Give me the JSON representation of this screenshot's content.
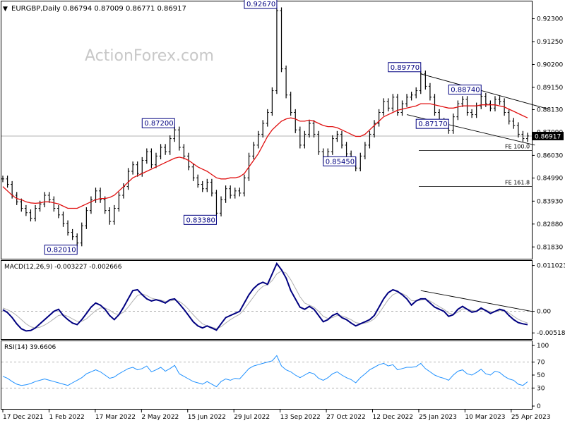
{
  "header": {
    "symbol_line": "EURGBP,Daily  0.86794 0.87009 0.86771 0.86917",
    "watermark": "ActionForex.com"
  },
  "chart_data": [
    {
      "type": "line",
      "name": "price",
      "title": "EURGBP,Daily  0.86794 0.87009 0.86771 0.86917",
      "ylim": [
        0.8145,
        0.929
      ],
      "yticks": [
        "0.92300",
        "0.91250",
        "0.90200",
        "0.89150",
        "0.88130",
        "0.87090",
        "0.86030",
        "0.84990",
        "0.83930",
        "0.82880",
        "0.81830"
      ],
      "last_price_label": "0.86917",
      "last_price": 0.86917,
      "x_labels": [
        "17 Dec 2021",
        "1 Feb 2022",
        "17 Mar 2022",
        "2 May 2022",
        "15 Jun 2022",
        "29 Jul 2022",
        "13 Sep 2022",
        "27 Oct 2022",
        "12 Dec 2022",
        "25 Jan 2023",
        "10 Mar 2023",
        "25 Apr 2023"
      ],
      "series": [
        {
          "key": "close",
          "values": [
            0.8495,
            0.847,
            0.842,
            0.839,
            0.836,
            0.834,
            0.8315,
            0.836,
            0.838,
            0.842,
            0.84,
            0.836,
            0.833,
            0.829,
            0.825,
            0.823,
            0.8201,
            0.828,
            0.835,
            0.84,
            0.844,
            0.84,
            0.835,
            0.83,
            0.836,
            0.842,
            0.846,
            0.853,
            0.856,
            0.852,
            0.858,
            0.862,
            0.856,
            0.86,
            0.864,
            0.862,
            0.868,
            0.872,
            0.864,
            0.86,
            0.855,
            0.85,
            0.847,
            0.845,
            0.848,
            0.843,
            0.8338,
            0.84,
            0.845,
            0.842,
            0.844,
            0.843,
            0.85,
            0.86,
            0.865,
            0.87,
            0.875,
            0.88,
            0.89,
            0.9267,
            0.9,
            0.888,
            0.88,
            0.872,
            0.865,
            0.87,
            0.875,
            0.87,
            0.862,
            0.858,
            0.862,
            0.868,
            0.87,
            0.865,
            0.861,
            0.858,
            0.8545,
            0.86,
            0.865,
            0.87,
            0.875,
            0.88,
            0.885,
            0.882,
            0.887,
            0.88,
            0.884,
            0.887,
            0.888,
            0.89,
            0.8977,
            0.892,
            0.887,
            0.88,
            0.876,
            0.874,
            0.8717,
            0.878,
            0.884,
            0.886,
            0.88,
            0.879,
            0.883,
            0.8874,
            0.884,
            0.882,
            0.886,
            0.885,
            0.88,
            0.876,
            0.874,
            0.87,
            0.868,
            0.8692
          ]
        },
        {
          "key": "moving_average",
          "values": [
            0.846,
            0.844,
            0.842,
            0.8405,
            0.84,
            0.839,
            0.8385,
            0.8383,
            0.8385,
            0.839,
            0.839,
            0.8385,
            0.838,
            0.837,
            0.836,
            0.836,
            0.836,
            0.837,
            0.838,
            0.839,
            0.84,
            0.8405,
            0.8405,
            0.841,
            0.842,
            0.844,
            0.846,
            0.848,
            0.85,
            0.851,
            0.852,
            0.853,
            0.854,
            0.855,
            0.856,
            0.857,
            0.858,
            0.859,
            0.8595,
            0.859,
            0.858,
            0.8565,
            0.855,
            0.854,
            0.853,
            0.8515,
            0.85,
            0.8495,
            0.8495,
            0.85,
            0.85,
            0.8505,
            0.852,
            0.855,
            0.858,
            0.861,
            0.865,
            0.869,
            0.872,
            0.874,
            0.876,
            0.877,
            0.8775,
            0.877,
            0.876,
            0.876,
            0.8765,
            0.876,
            0.875,
            0.874,
            0.8735,
            0.8735,
            0.873,
            0.872,
            0.871,
            0.87,
            0.869,
            0.869,
            0.87,
            0.872,
            0.874,
            0.876,
            0.878,
            0.879,
            0.88,
            0.881,
            0.8815,
            0.882,
            0.8825,
            0.883,
            0.884,
            0.884,
            0.884,
            0.8835,
            0.883,
            0.8825,
            0.882,
            0.882,
            0.8825,
            0.883,
            0.883,
            0.883,
            0.883,
            0.8835,
            0.8835,
            0.8835,
            0.8835,
            0.883,
            0.8825,
            0.8815,
            0.8805,
            0.8795,
            0.8785,
            0.8775
          ]
        }
      ],
      "annotations": [
        {
          "text": "0.92670",
          "x_index": 59,
          "y": 0.9267,
          "side": "left"
        },
        {
          "text": "0.87200",
          "x_index": 37,
          "y": 0.872,
          "side": "left"
        },
        {
          "text": "0.83380",
          "x_index": 46,
          "y": 0.8338,
          "side": "left"
        },
        {
          "text": "0.82010",
          "x_index": 16,
          "y": 0.8201,
          "side": "left"
        },
        {
          "text": "0.85450",
          "x_index": 76,
          "y": 0.8545,
          "side": "left"
        },
        {
          "text": "0.89770",
          "x_index": 90,
          "y": 0.8977,
          "side": "left"
        },
        {
          "text": "0.88740",
          "x_index": 103,
          "y": 0.8874,
          "side": "left"
        },
        {
          "text": "0.87170",
          "x_index": 96,
          "y": 0.8717,
          "side": "left"
        }
      ],
      "channel": {
        "upper": {
          "from_index": 90,
          "from_y": 0.8977,
          "to_index": 113,
          "to_y": 0.8815
        },
        "lower": {
          "from_index": 87,
          "from_y": 0.879,
          "to_index": 110,
          "to_y": 0.865
        }
      },
      "fib_levels": [
        {
          "label": "FE 100.0",
          "y": 0.8625
        },
        {
          "label": "FE 161.8",
          "y": 0.846
        }
      ]
    },
    {
      "type": "line",
      "name": "macd",
      "title": "MACD(12,26,9) -0.003227 -0.002666",
      "ylim": [
        -0.0065,
        0.0118
      ],
      "yticks": [
        "0.011023",
        "0.00",
        "-0.005182"
      ],
      "zero_ticks": [
        "0.00"
      ],
      "series": [
        {
          "key": "macd_line",
          "values": [
            0.0004,
            -0.0003,
            -0.0015,
            -0.003,
            -0.0042,
            -0.0047,
            -0.0046,
            -0.004,
            -0.003,
            -0.002,
            -0.001,
            0.0,
            0.0005,
            -0.001,
            -0.002,
            -0.0028,
            -0.0032,
            -0.002,
            -0.0005,
            0.001,
            0.002,
            0.0015,
            0.0005,
            -0.001,
            -0.002,
            -0.0008,
            0.001,
            0.003,
            0.005,
            0.0052,
            0.004,
            0.003,
            0.0025,
            0.0028,
            0.0025,
            0.002,
            0.0028,
            0.003,
            0.0018,
            0.0005,
            -0.001,
            -0.0025,
            -0.0035,
            -0.004,
            -0.0035,
            -0.004,
            -0.0045,
            -0.003,
            -0.0015,
            -0.001,
            -0.0005,
            0.0,
            0.002,
            0.004,
            0.0055,
            0.0065,
            0.007,
            0.0065,
            0.009,
            0.0115,
            0.01,
            0.008,
            0.005,
            0.003,
            0.001,
            0.0005,
            0.0012,
            0.0005,
            -0.001,
            -0.0025,
            -0.002,
            -0.001,
            -0.0005,
            -0.0015,
            -0.002,
            -0.0028,
            -0.0035,
            -0.003,
            -0.0025,
            -0.002,
            -0.001,
            0.001,
            0.003,
            0.0045,
            0.0052,
            0.0048,
            0.004,
            0.003,
            0.0015,
            0.0025,
            0.003,
            0.003,
            0.002,
            0.001,
            0.0005,
            0.0,
            -0.0012,
            -0.0008,
            0.0005,
            0.0012,
            0.0005,
            -0.0002,
            0.0,
            0.0008,
            0.0002,
            -0.0005,
            0.0,
            0.0005,
            0.0002,
            -0.001,
            -0.002,
            -0.0027,
            -0.003,
            -0.0032
          ]
        },
        {
          "key": "signal_line",
          "values": [
            0.0008,
            0.0004,
            -0.0002,
            -0.001,
            -0.002,
            -0.003,
            -0.0037,
            -0.004,
            -0.0038,
            -0.0033,
            -0.0026,
            -0.0018,
            -0.001,
            -0.0008,
            -0.0012,
            -0.0018,
            -0.0024,
            -0.0024,
            -0.0018,
            -0.0008,
            0.0002,
            0.0008,
            0.0008,
            0.0003,
            -0.0005,
            -0.0008,
            -0.0002,
            0.001,
            0.0025,
            0.0038,
            0.0042,
            0.0038,
            0.0032,
            0.0029,
            0.0027,
            0.0024,
            0.0025,
            0.0027,
            0.0024,
            0.0016,
            0.0005,
            -0.0008,
            -0.002,
            -0.003,
            -0.0035,
            -0.0038,
            -0.0041,
            -0.0037,
            -0.0028,
            -0.002,
            -0.0013,
            -0.0007,
            0.0005,
            0.002,
            0.0035,
            0.005,
            0.006,
            0.0064,
            0.0074,
            0.009,
            0.0097,
            0.0092,
            0.0076,
            0.0056,
            0.0035,
            0.002,
            0.0015,
            0.001,
            0.0,
            -0.0012,
            -0.0017,
            -0.0015,
            -0.001,
            -0.0011,
            -0.0015,
            -0.002,
            -0.0027,
            -0.0029,
            -0.0028,
            -0.0025,
            -0.0018,
            -0.0005,
            0.0012,
            0.0028,
            0.004,
            0.0045,
            0.0043,
            0.0037,
            0.0026,
            0.0025,
            0.0027,
            0.0029,
            0.0025,
            0.0018,
            0.0011,
            0.0005,
            -0.0004,
            -0.0007,
            -0.0002,
            0.0006,
            0.0006,
            0.0002,
            0.0001,
            0.0004,
            0.0003,
            -0.0001,
            -0.0001,
            0.0002,
            0.0002,
            -0.0004,
            -0.0012,
            -0.0019,
            -0.0024,
            -0.0028
          ]
        }
      ],
      "trendline": {
        "from_index": 90,
        "from_y": 0.005,
        "to_index": 113,
        "to_y": 0.0
      }
    },
    {
      "type": "line",
      "name": "rsi",
      "title": "RSI(14) 39.6606",
      "ylim": [
        0,
        100
      ],
      "yticks": [
        "100",
        "70",
        "50",
        "30",
        "0"
      ],
      "levels": [
        70,
        30
      ],
      "series": [
        {
          "key": "rsi",
          "values": [
            48,
            45,
            40,
            36,
            34,
            35,
            37,
            40,
            42,
            44,
            42,
            40,
            38,
            36,
            34,
            38,
            42,
            46,
            52,
            55,
            58,
            55,
            50,
            45,
            47,
            52,
            56,
            60,
            62,
            58,
            60,
            64,
            55,
            58,
            62,
            56,
            60,
            65,
            52,
            48,
            44,
            40,
            38,
            36,
            40,
            36,
            32,
            40,
            44,
            42,
            45,
            44,
            52,
            60,
            64,
            66,
            68,
            70,
            72,
            80,
            64,
            58,
            55,
            50,
            46,
            50,
            54,
            52,
            45,
            42,
            46,
            52,
            55,
            50,
            46,
            43,
            38,
            46,
            52,
            58,
            62,
            66,
            68,
            64,
            66,
            58,
            60,
            62,
            62,
            63,
            68,
            60,
            55,
            50,
            47,
            45,
            42,
            50,
            56,
            58,
            52,
            50,
            54,
            59,
            52,
            50,
            56,
            54,
            48,
            44,
            42,
            36,
            34,
            39.66
          ]
        }
      ]
    }
  ],
  "colors": {
    "price_line": "#1010ff",
    "moving_average": "#e01010",
    "macd_line": "#000080",
    "signal_line": "#b0b0b0",
    "rsi_line": "#1e90ff",
    "label_border": "#000080",
    "label_text": "#000080",
    "grid": "#000000",
    "watermark": "#c8c8c8"
  }
}
